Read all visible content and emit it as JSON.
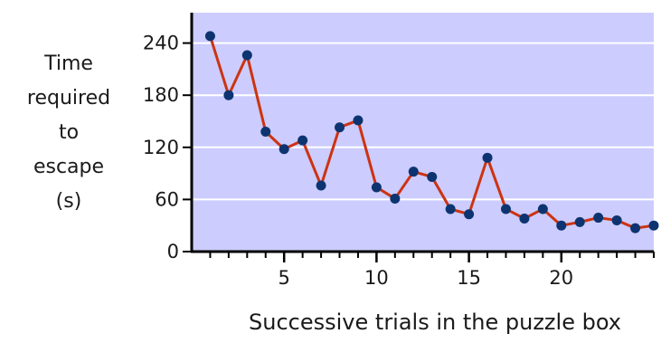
{
  "chart_data": {
    "type": "line",
    "title": "",
    "xlabel": "Successive trials in the puzzle box",
    "ylabel_lines": [
      "Time",
      "required",
      "to",
      "escape",
      "(s)"
    ],
    "x": [
      1,
      2,
      3,
      4,
      5,
      6,
      7,
      8,
      9,
      10,
      11,
      12,
      13,
      14,
      15,
      16,
      17,
      18,
      19,
      20,
      21,
      22,
      23,
      24,
      25
    ],
    "values": [
      248,
      180,
      226,
      138,
      118,
      128,
      76,
      143,
      151,
      74,
      61,
      92,
      86,
      49,
      43,
      108,
      49,
      38,
      49,
      30,
      34,
      39,
      36,
      27,
      30
    ],
    "x_ticks": [
      5,
      10,
      15,
      20
    ],
    "x_tick_labels": [
      "5",
      "10",
      "15",
      "20"
    ],
    "y_ticks": [
      0,
      60,
      120,
      180,
      240
    ],
    "y_tick_labels": [
      "0",
      "60",
      "120",
      "180",
      "240"
    ],
    "xlim": [
      0,
      25
    ],
    "ylim": [
      0,
      275
    ],
    "grid": "horizontal",
    "colors": {
      "plot_background": "#ccccff",
      "gridline": "#ffffff",
      "line": "#cc3311",
      "marker": "#0d3470",
      "axis": "#000000"
    }
  }
}
